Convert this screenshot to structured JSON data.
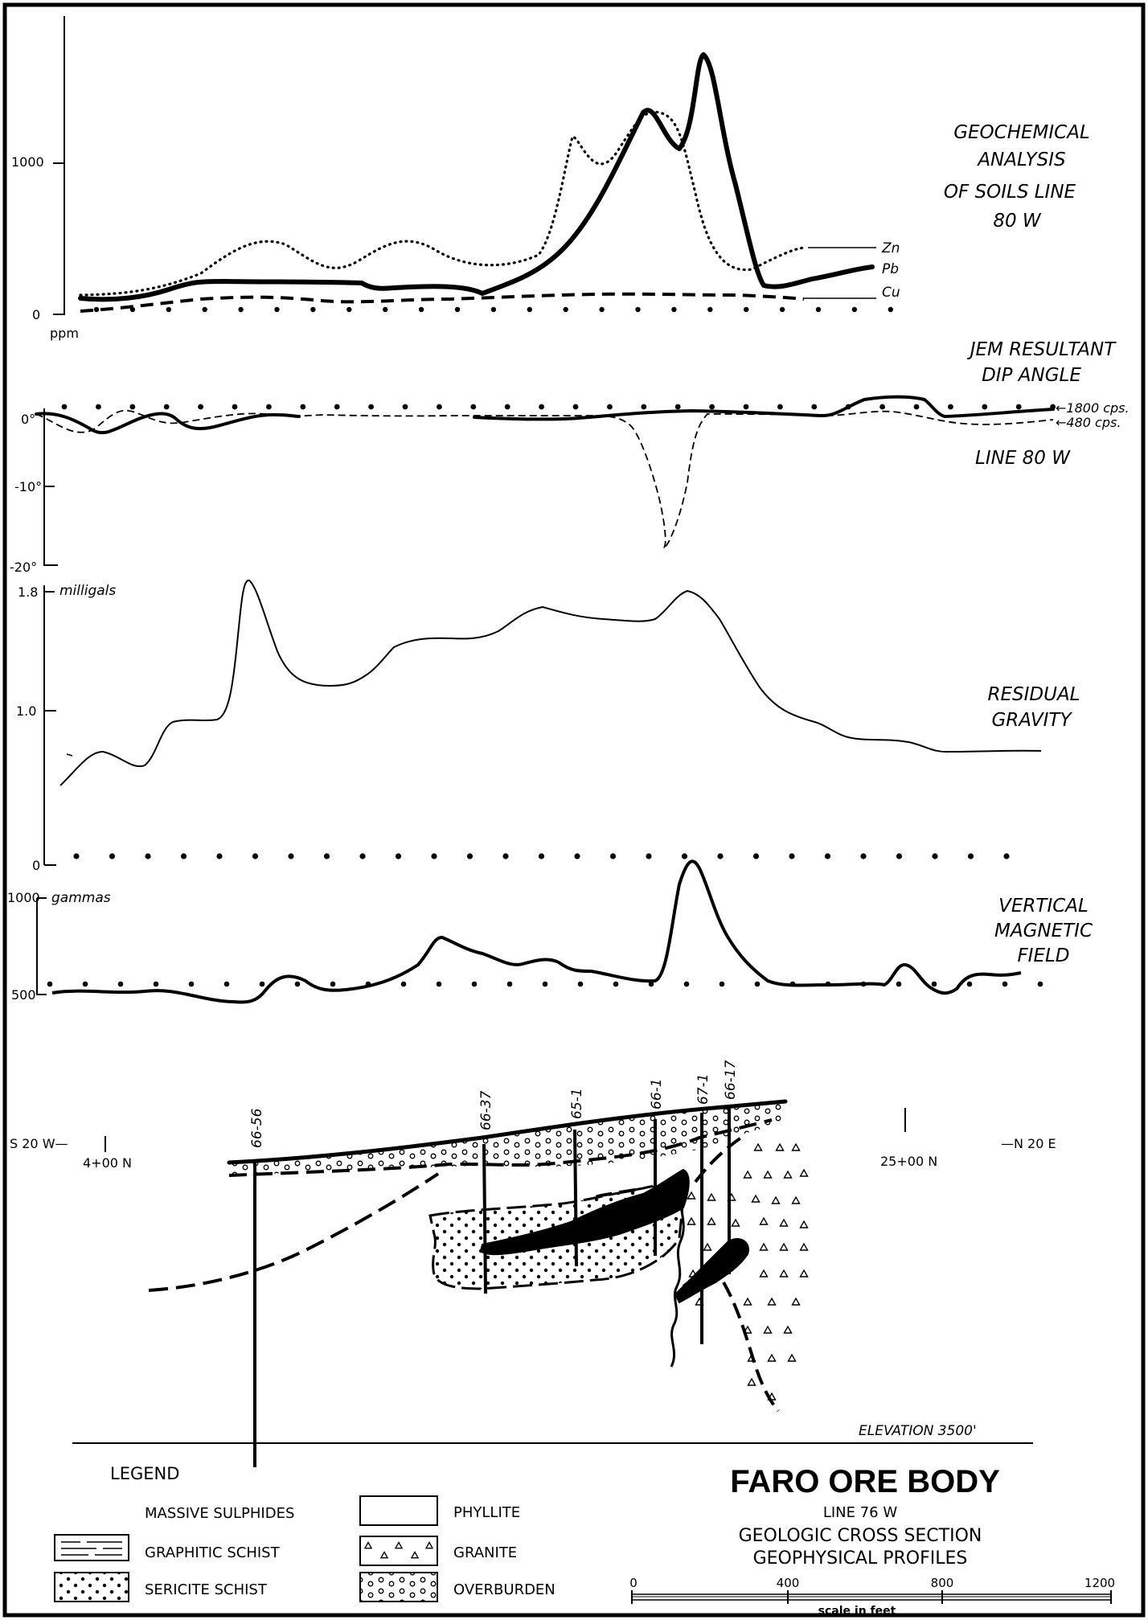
{
  "geochem": {
    "title_lines": [
      "GEOCHEMICAL",
      "ANALYSIS",
      "OF SOILS LINE",
      "80 W"
    ],
    "tick_1000": "1000",
    "tick_0": "0",
    "unit": "ppm",
    "legend": [
      "Zn",
      "Pb",
      "Cu"
    ]
  },
  "jem": {
    "title_lines": [
      "JEM RESULTANT",
      "DIP ANGLE"
    ],
    "line_label": "LINE 80 W",
    "tick_0": "0°",
    "tick_m10": "-10°",
    "tick_m20": "-20°",
    "label_1800": "←1800 cps.",
    "label_480": "←480 cps."
  },
  "gravity": {
    "title_lines": [
      "RESIDUAL",
      "GRAVITY"
    ],
    "tick_18": "1.8",
    "tick_10": "1.0",
    "tick_0": "0",
    "unit": "milligals"
  },
  "magnetic": {
    "title_lines": [
      "VERTICAL",
      "MAGNETIC",
      "FIELD"
    ],
    "tick_1000": "1000",
    "tick_500": "500",
    "unit": "gammas"
  },
  "section": {
    "left_dir": "S 20 W—",
    "left_station": "4+00 N",
    "right_dir": "—N 20 E",
    "right_station": "25+00 N",
    "holes": [
      "66-56",
      "66-37",
      "65-1",
      "66-1",
      "67-1",
      "66-17"
    ],
    "elevation": "ELEVATION  3500'"
  },
  "legend": {
    "title": "LEGEND",
    "items": [
      "MASSIVE SULPHIDES",
      "GRAPHITIC SCHIST",
      "SERICITE SCHIST",
      "PHYLLITE",
      "GRANITE",
      "OVERBURDEN"
    ]
  },
  "title_block": {
    "title": "FARO ORE BODY",
    "line": "LINE 76 W",
    "subtitle1": "GEOLOGIC CROSS SECTION",
    "subtitle2": "GEOPHYSICAL PROFILES"
  },
  "scale": {
    "ticks": [
      "0",
      "400",
      "800",
      "1200"
    ],
    "label": "scale in feet"
  }
}
